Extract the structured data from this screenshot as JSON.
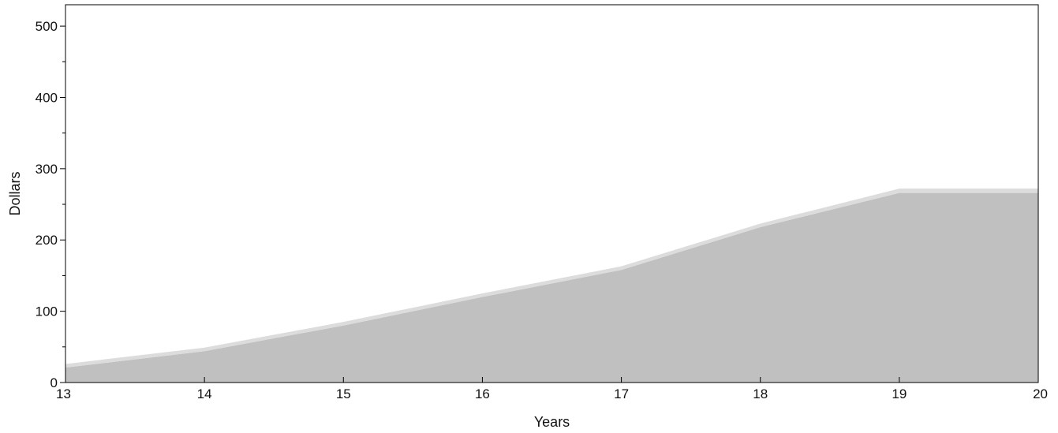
{
  "chart_data": {
    "type": "area",
    "title": "",
    "xlabel": "Years",
    "ylabel": "Dollars",
    "x": [
      13,
      14,
      15,
      16,
      17,
      18,
      19,
      20
    ],
    "xlim": [
      13,
      20
    ],
    "ylim": [
      0,
      530
    ],
    "x_ticks": [
      "13",
      "14",
      "15",
      "16",
      "17",
      "18",
      "19",
      "20"
    ],
    "y_ticks": [
      "0",
      "100",
      "200",
      "300",
      "400",
      "500"
    ],
    "y_minor_ticks": [
      50,
      150,
      250,
      350,
      450
    ],
    "series": [
      {
        "values": [
          21,
          44,
          80,
          120,
          158,
          218,
          266,
          266
        ],
        "color": "#c0c0c0"
      },
      {
        "values": [
          5,
          5,
          5,
          5,
          5,
          5,
          6,
          6
        ],
        "color": "#dcdcdc"
      }
    ],
    "stacked": true,
    "grid": false
  }
}
